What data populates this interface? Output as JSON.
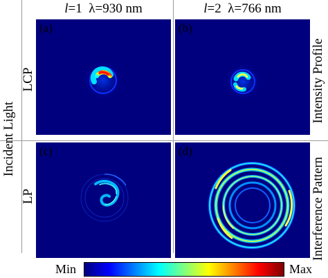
{
  "columns": [
    {
      "l_symbol": "l",
      "l_value": "=1",
      "wavelength": "λ=930 nm"
    },
    {
      "l_symbol": "l",
      "l_value": "=2",
      "wavelength": "λ=766 nm"
    }
  ],
  "left_group_label": "Incident Light",
  "row_labels": [
    "LCP",
    "LP"
  ],
  "right_labels": [
    "Intensity Profile",
    "Interference Pattern"
  ],
  "panels": [
    {
      "label": "(a)",
      "content": "intensity-profile-l1"
    },
    {
      "label": "(b)",
      "content": "intensity-profile-l2"
    },
    {
      "label": "(c)",
      "content": "interference-pattern-l1"
    },
    {
      "label": "(d)",
      "content": "interference-pattern-l2"
    }
  ],
  "colorbar": {
    "min_label": "Min",
    "max_label": "Max",
    "colors": [
      "#00007f",
      "#0000ff",
      "#007fff",
      "#00ffff",
      "#7fff7f",
      "#ffff00",
      "#ff7f00",
      "#ff0000",
      "#7f0000"
    ]
  },
  "colors": {
    "background": "#00007f",
    "divider": "#9a9a9a"
  }
}
